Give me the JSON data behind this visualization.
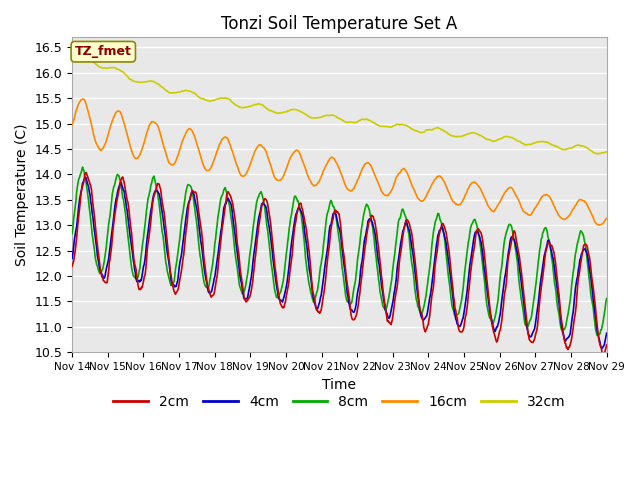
{
  "title": "Tonzi Soil Temperature Set A",
  "xlabel": "Time",
  "ylabel": "Soil Temperature (C)",
  "ylim": [
    10.5,
    16.7
  ],
  "xlim": [
    0,
    15
  ],
  "xtick_labels": [
    "Nov 14",
    "Nov 15",
    "Nov 16",
    "Nov 17",
    "Nov 18",
    "Nov 19",
    "Nov 20",
    "Nov 21",
    "Nov 22",
    "Nov 23",
    "Nov 24",
    "Nov 25",
    "Nov 26",
    "Nov 27",
    "Nov 28",
    "Nov 29"
  ],
  "xtick_positions": [
    0,
    1,
    2,
    3,
    4,
    5,
    6,
    7,
    8,
    9,
    10,
    11,
    12,
    13,
    14,
    15
  ],
  "series_colors": [
    "#cc0000",
    "#0000cc",
    "#00aa00",
    "#ff8800",
    "#cccc00"
  ],
  "series_labels": [
    "2cm",
    "4cm",
    "8cm",
    "16cm",
    "32cm"
  ],
  "annotation_text": "TZ_fmet",
  "annotation_color": "#8b0000",
  "annotation_bg": "#ffffcc",
  "annotation_border": "#888800",
  "background_color": "#e8e8e8",
  "grid_color": "#ffffff",
  "title_fontsize": 12,
  "axis_fontsize": 10,
  "legend_fontsize": 10,
  "num_points": 720
}
